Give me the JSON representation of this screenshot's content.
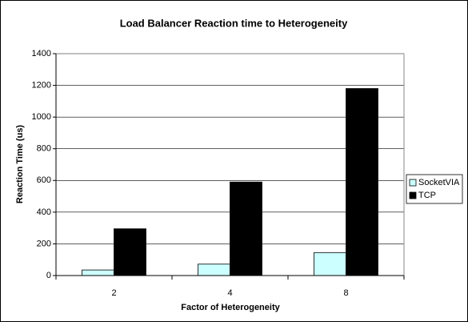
{
  "chart_data": {
    "type": "bar",
    "title": "Load Balancer Reaction time to Heterogeneity",
    "x_label": "Factor of Heterogeneity",
    "y_label": "Reaction Time (us)",
    "categories": [
      "2",
      "4",
      "8"
    ],
    "series": [
      {
        "name": "SocketVIA",
        "color": "#ccffff",
        "values": [
          35,
          72,
          145
        ]
      },
      {
        "name": "TCP",
        "color": "#000000",
        "values": [
          295,
          590,
          1180
        ]
      }
    ],
    "ylim": [
      0,
      1400
    ],
    "yticks": [
      0,
      200,
      400,
      600,
      800,
      1000,
      1200,
      1400
    ],
    "grid": true,
    "legend": "right"
  }
}
